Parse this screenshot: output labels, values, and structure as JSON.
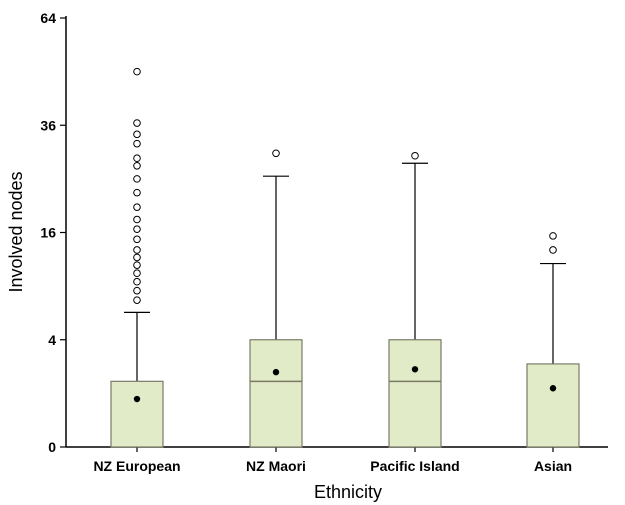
{
  "chart_data": {
    "type": "box",
    "xlabel": "Ethnicity",
    "ylabel": "Involved nodes",
    "y_scale": "sqrt",
    "ylim": [
      0,
      64
    ],
    "y_ticks": [
      0,
      4,
      16,
      36,
      64
    ],
    "categories": [
      "NZ European",
      "NZ Maori",
      "Pacific Island",
      "Asian"
    ],
    "boxes": [
      {
        "q1": 0,
        "median": 0,
        "q3": 1.5,
        "whisker_low": 0,
        "whisker_high": 6.3,
        "mean": 0.8,
        "outliers": [
          7.5,
          8.5,
          9.5,
          10.5,
          11.5,
          12.5,
          13.5,
          15,
          16.5,
          18,
          20,
          22.5,
          25,
          27.5,
          29,
          32,
          34,
          36.5,
          49
        ]
      },
      {
        "q1": 0,
        "median": 1.5,
        "q3": 4,
        "whisker_low": 0,
        "whisker_high": 25.5,
        "mean": 1.95,
        "outliers": [
          30
        ]
      },
      {
        "q1": 0,
        "median": 1.5,
        "q3": 4,
        "whisker_low": 0,
        "whisker_high": 28,
        "mean": 2.1,
        "outliers": [
          29.5
        ]
      },
      {
        "q1": 0,
        "median": 0,
        "q3": 2.4,
        "whisker_low": 0,
        "whisker_high": 11.7,
        "mean": 1.2,
        "outliers": [
          13.5,
          15.5
        ]
      }
    ],
    "colors": {
      "box_fill": "#e2ebc8",
      "box_stroke": "#7a7a66",
      "line": "#000000"
    }
  }
}
